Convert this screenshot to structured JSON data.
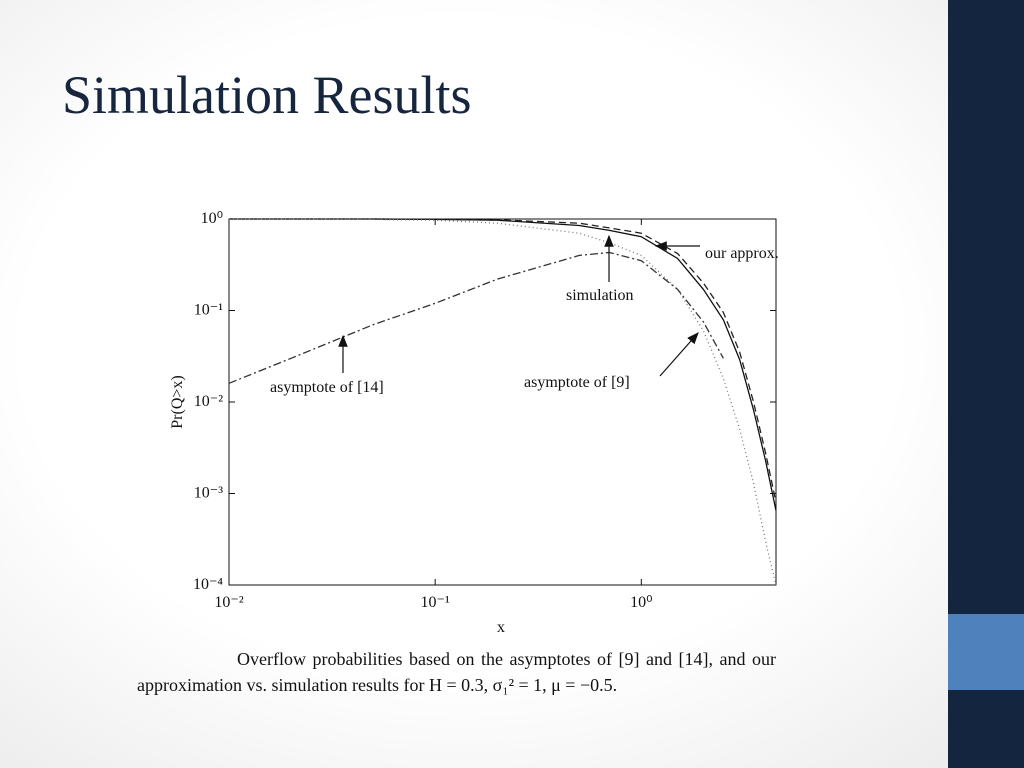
{
  "slide": {
    "title": "Simulation Results",
    "caption": "Overflow probabilities based on the asymptotes of [9] and [14], and our approximation vs. simulation results for H = 0.3, σ₁² = 1, μ = −0.5."
  },
  "chart_data": {
    "type": "line",
    "log_x": true,
    "log_y": true,
    "x_label": "x",
    "y_label": "Pr(Q>x)",
    "x": [
      0.01,
      0.02,
      0.05,
      0.1,
      0.2,
      0.5,
      0.7,
      1,
      1.5,
      2,
      2.5,
      3,
      3.5,
      4,
      4.5
    ],
    "series": [
      {
        "name": "simulation",
        "color": "#111111",
        "dash": "none",
        "values": [
          1,
          1,
          1,
          0.99,
          0.97,
          0.85,
          0.75,
          0.64,
          0.37,
          0.17,
          0.079,
          0.029,
          0.0082,
          0.0023,
          0.00065
        ]
      },
      {
        "name": "our approx.",
        "color": "#222222",
        "dash": "7 4",
        "values": [
          1,
          1,
          1,
          0.99,
          0.98,
          0.9,
          0.8,
          0.7,
          0.42,
          0.2,
          0.095,
          0.035,
          0.01,
          0.0028,
          0.0008
        ]
      },
      {
        "name": "asymptote of [9]",
        "color": "#777777",
        "dash": "1 3",
        "values": [
          1,
          1,
          0.99,
          0.97,
          0.9,
          0.7,
          0.55,
          0.4,
          0.17,
          0.06,
          0.018,
          0.005,
          0.0013,
          0.0003,
          0.0001
        ]
      },
      {
        "name": "asymptote of [14]",
        "color": "#333333",
        "dash": "8 3 2 3",
        "values": [
          0.016,
          0.03,
          0.07,
          0.12,
          0.22,
          0.4,
          0.43,
          0.35,
          0.17,
          0.075,
          0.03,
          null,
          null,
          null,
          null
        ]
      }
    ],
    "xlim": [
      0.01,
      4.5
    ],
    "ylim": [
      0.0001,
      1
    ],
    "xticks": [
      {
        "value": 0.01,
        "label": "10⁻²"
      },
      {
        "value": 0.1,
        "label": "10⁻¹"
      },
      {
        "value": 1,
        "label": "10⁰"
      }
    ],
    "yticks": [
      {
        "value": 0.0001,
        "label": "10⁻⁴"
      },
      {
        "value": 0.001,
        "label": "10⁻³"
      },
      {
        "value": 0.01,
        "label": "10⁻²"
      },
      {
        "value": 0.1,
        "label": "10⁻¹"
      },
      {
        "value": 1,
        "label": "10⁰"
      }
    ]
  }
}
